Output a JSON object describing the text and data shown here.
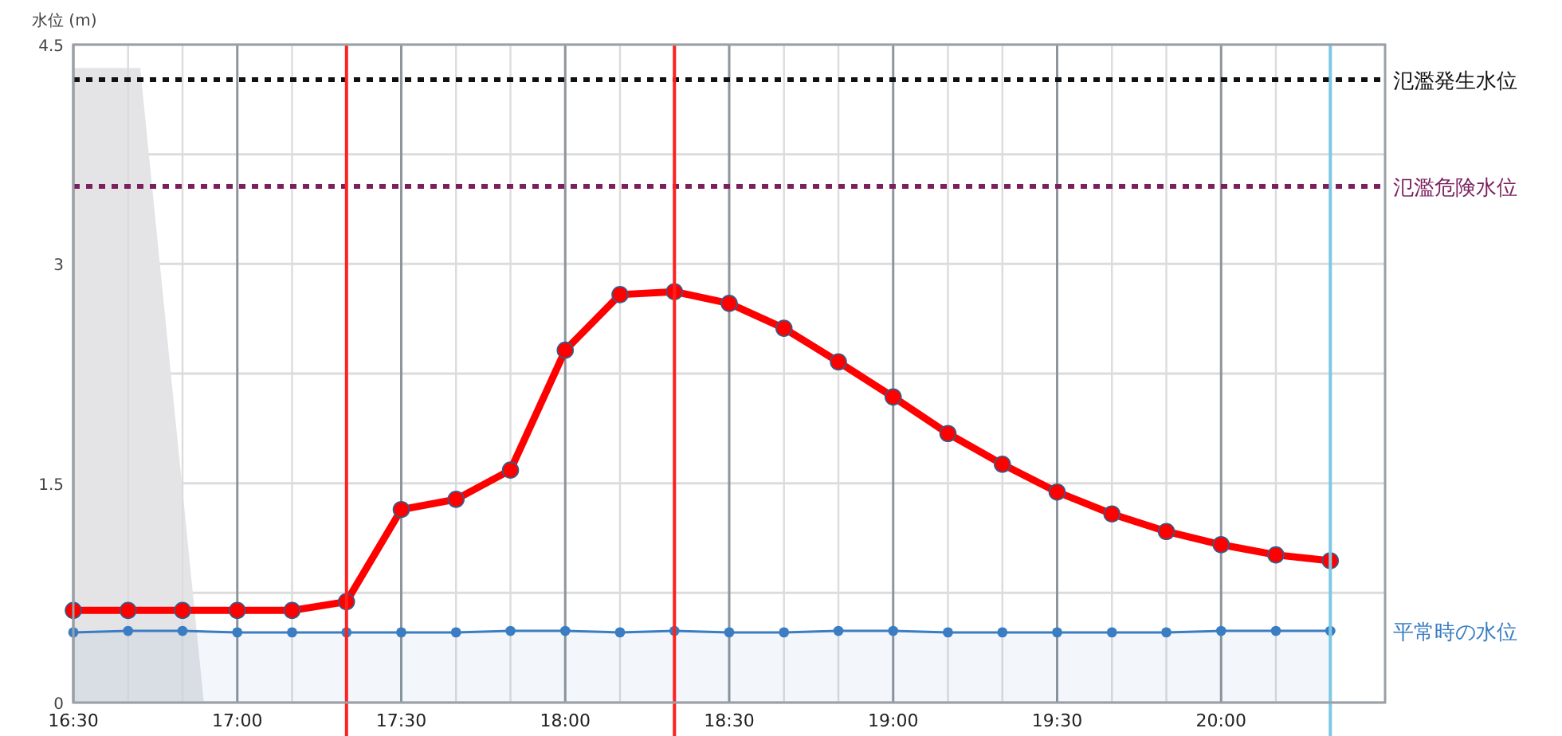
{
  "chart_data": {
    "type": "line",
    "ylabel": "水位 (m)",
    "x": [
      16.5,
      16.667,
      16.833,
      17,
      17.167,
      17.333,
      17.5,
      17.667,
      17.833,
      18,
      18.167,
      18.333,
      18.5,
      18.667,
      18.833,
      19,
      19.167,
      19.333,
      19.5,
      19.667,
      19.833,
      20,
      20.167,
      20.333
    ],
    "series": [
      {
        "type": "area",
        "color": "#e4e4e7",
        "x": [
          16.5,
          16.704,
          16.898
        ],
        "values": [
          4.34,
          4.34,
          0
        ],
        "marker": "none"
      },
      {
        "type": "area",
        "name": "平常時の水位",
        "color": "#3a7dc2",
        "values": [
          0.48,
          0.49,
          0.49,
          0.48,
          0.48,
          0.48,
          0.48,
          0.48,
          0.49,
          0.49,
          0.48,
          0.49,
          0.48,
          0.48,
          0.49,
          0.49,
          0.48,
          0.48,
          0.48,
          0.48,
          0.48,
          0.49,
          0.49,
          0.49
        ]
      },
      {
        "type": "line",
        "color": "#ff0000",
        "values": [
          0.63,
          0.63,
          0.63,
          0.63,
          0.63,
          0.69,
          1.32,
          1.39,
          1.59,
          2.41,
          2.79,
          2.81,
          2.73,
          2.56,
          2.33,
          2.09,
          1.84,
          1.63,
          1.44,
          1.29,
          1.17,
          1.08,
          1.01,
          0.97
        ]
      }
    ],
    "xlim": [
      16.5,
      20.5
    ],
    "ylim": [
      0,
      4.5
    ],
    "yticks": [
      0,
      {
        "value": 0.75,
        "label": null
      },
      1.5,
      {
        "value": 2.25,
        "label": null
      },
      3,
      {
        "value": 3.75,
        "label": null
      },
      4.5
    ],
    "xticks": [
      {
        "value": 16.5,
        "label": "16:30"
      },
      {
        "value": 16.667,
        "label": null
      },
      {
        "value": 16.833,
        "label": null
      },
      {
        "value": 17,
        "label": "17:00"
      },
      {
        "value": 17.167,
        "label": null
      },
      {
        "value": 17.5,
        "label": "17:30"
      },
      {
        "value": 17.667,
        "label": null
      },
      {
        "value": 17.833,
        "label": null
      },
      {
        "value": 18,
        "label": "18:00"
      },
      {
        "value": 18.167,
        "label": null
      },
      {
        "value": 18.5,
        "label": "18:30"
      },
      {
        "value": 18.667,
        "label": null
      },
      {
        "value": 18.833,
        "label": null
      },
      {
        "value": 19,
        "label": "19:00"
      },
      {
        "value": 19.167,
        "label": null
      },
      {
        "value": 19.333,
        "label": null
      },
      {
        "value": 19.5,
        "label": "19:30"
      },
      {
        "value": 19.667,
        "label": null
      },
      {
        "value": 19.833,
        "label": null
      },
      {
        "value": 20,
        "label": "20:00"
      },
      {
        "value": 20.167,
        "label": null
      }
    ],
    "ref_lines": [
      {
        "axis": "y",
        "value": 4.26,
        "label": "氾濫発生水位",
        "color": "#111111",
        "line_style": "dotted"
      },
      {
        "axis": "y",
        "value": 3.53,
        "label": "氾濫危険水位",
        "color": "#7b1f5e",
        "line_style": "dotted"
      },
      {
        "axis": "x",
        "value": 17.333,
        "color": "#ff2020",
        "line_style": "solid"
      },
      {
        "axis": "x",
        "value": 18.333,
        "color": "#ff2020",
        "line_style": "solid"
      },
      {
        "axis": "x",
        "value": 20.333,
        "color": "#7ec8e3",
        "line_style": "solid"
      }
    ],
    "grid": true,
    "legend": false,
    "marker": "circle",
    "line_style": "solid"
  }
}
